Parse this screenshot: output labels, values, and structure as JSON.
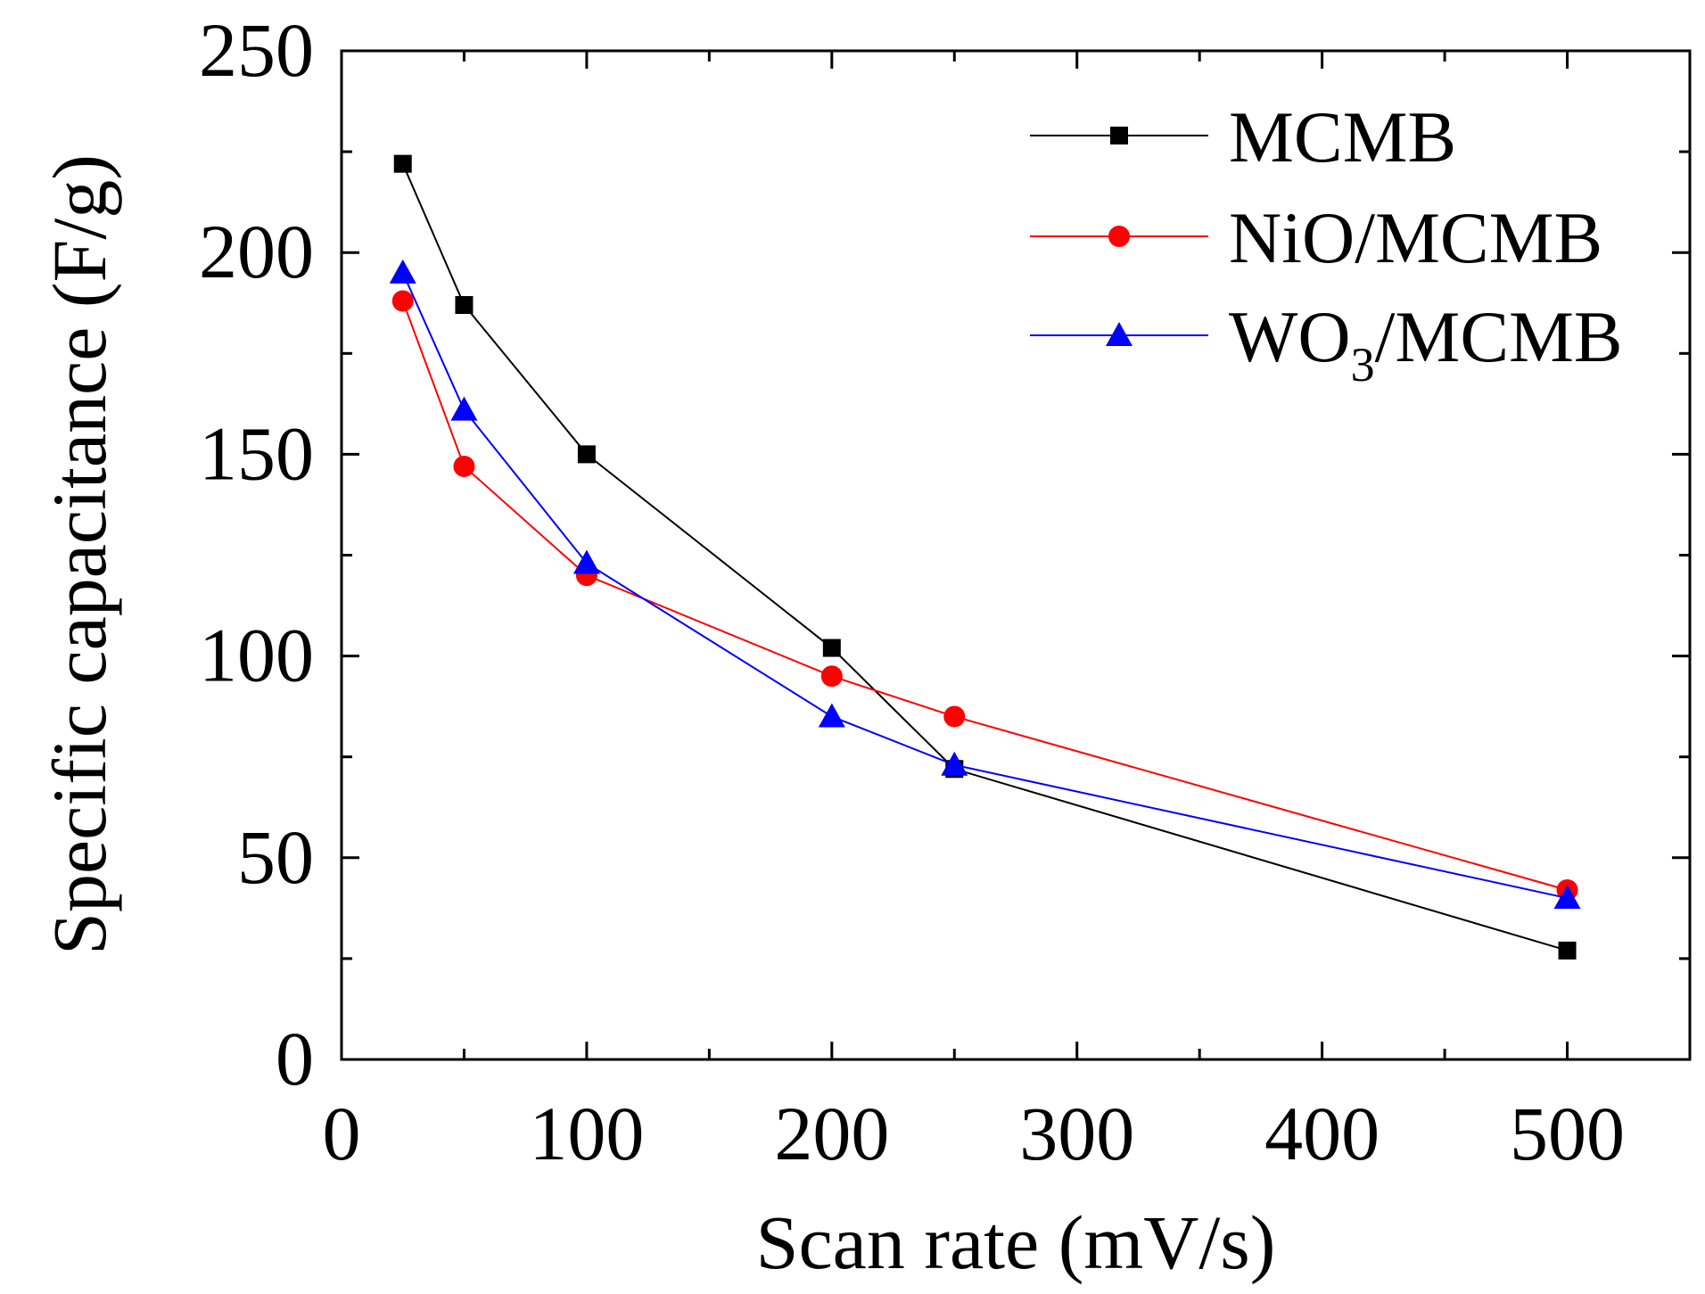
{
  "chart_data": {
    "type": "line",
    "title": "",
    "xlabel": "Scan rate (mV/s)",
    "ylabel": "Specific capacitance (F/g)",
    "xlim": [
      0,
      550
    ],
    "ylim": [
      0,
      250
    ],
    "x_ticks": [
      0,
      100,
      200,
      300,
      400,
      500
    ],
    "x_minor_ticks": [
      50,
      150,
      250,
      350,
      450
    ],
    "y_ticks": [
      0,
      50,
      100,
      150,
      200,
      250
    ],
    "y_minor_ticks": [
      25,
      75,
      125,
      175,
      225
    ],
    "legend_position": "top-right",
    "series": [
      {
        "name": "MCMB",
        "name_parts": [
          {
            "text": "MCMB",
            "sub": false
          }
        ],
        "color": "#000000",
        "marker": "square",
        "x": [
          25,
          50,
          100,
          200,
          250,
          500
        ],
        "values": [
          222,
          187,
          150,
          102,
          72,
          27
        ]
      },
      {
        "name": "NiO/MCMB",
        "name_parts": [
          {
            "text": "NiO/MCMB",
            "sub": false
          }
        ],
        "color": "#ff0000",
        "marker": "circle",
        "x": [
          25,
          50,
          100,
          200,
          250,
          500
        ],
        "values": [
          188,
          147,
          120,
          95,
          85,
          42
        ]
      },
      {
        "name": "WO3/MCMB",
        "name_parts": [
          {
            "text": "WO",
            "sub": false
          },
          {
            "text": "3",
            "sub": true
          },
          {
            "text": "/MCMB",
            "sub": false
          }
        ],
        "color": "#0000ff",
        "marker": "triangle",
        "x": [
          25,
          50,
          100,
          200,
          250,
          500
        ],
        "values": [
          195,
          161,
          123,
          85,
          73,
          40
        ]
      }
    ]
  }
}
